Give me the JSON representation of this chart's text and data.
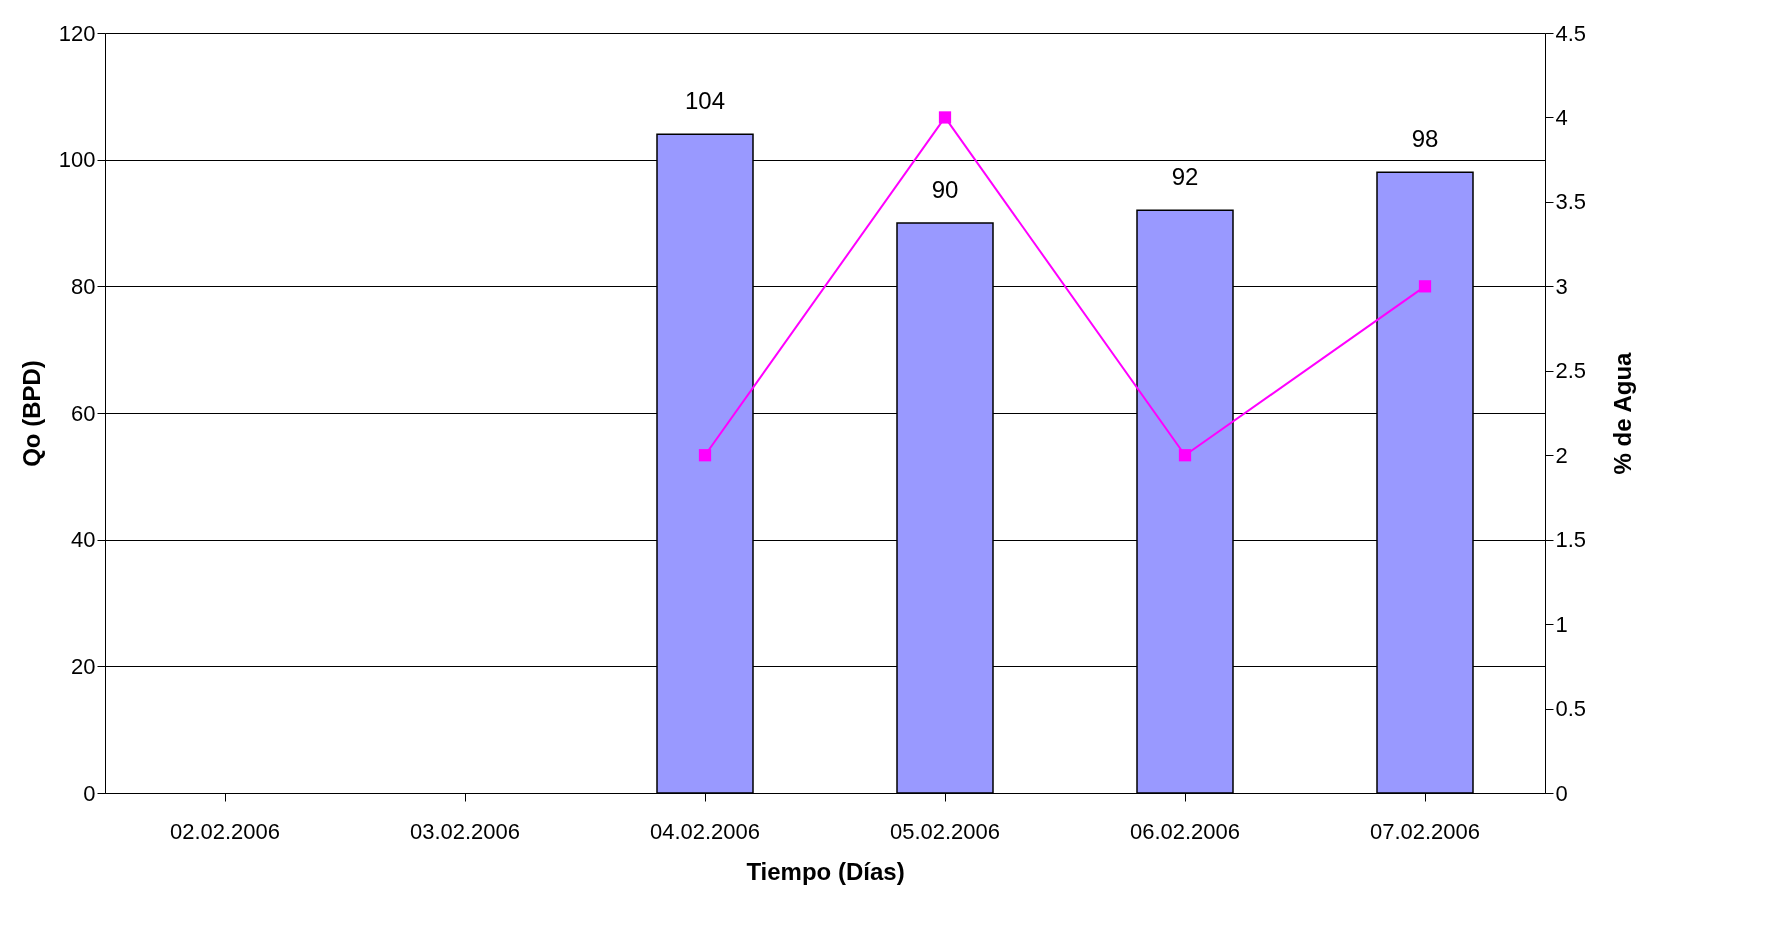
{
  "chart_data": {
    "type": "bar",
    "xlabel": "Tiempo (Días)",
    "ylabel": "Qo (BPD)",
    "y2label": "% de Agua",
    "categories": [
      "02.02.2006",
      "03.02.2006",
      "04.02.2006",
      "05.02.2006",
      "06.02.2006",
      "07.02.2006"
    ],
    "series": [
      {
        "axis": "y",
        "color": "#9999ff",
        "values": [
          null,
          null,
          104,
          90,
          92,
          98
        ],
        "value_labels": [
          null,
          null,
          "104",
          "90",
          "92",
          "98"
        ]
      },
      {
        "type": "line",
        "axis": "y2",
        "color": "#ff00ff",
        "marker": "square",
        "values": [
          null,
          null,
          2,
          4,
          2,
          3
        ]
      }
    ],
    "ylim": [
      0,
      120
    ],
    "yticks": [
      0,
      20,
      40,
      60,
      80,
      100,
      120
    ],
    "y2lim": [
      0,
      4.5
    ],
    "y2ticks": [
      0,
      0.5,
      1,
      1.5,
      2,
      2.5,
      3,
      3.5,
      4,
      4.5
    ],
    "grid": "y"
  }
}
